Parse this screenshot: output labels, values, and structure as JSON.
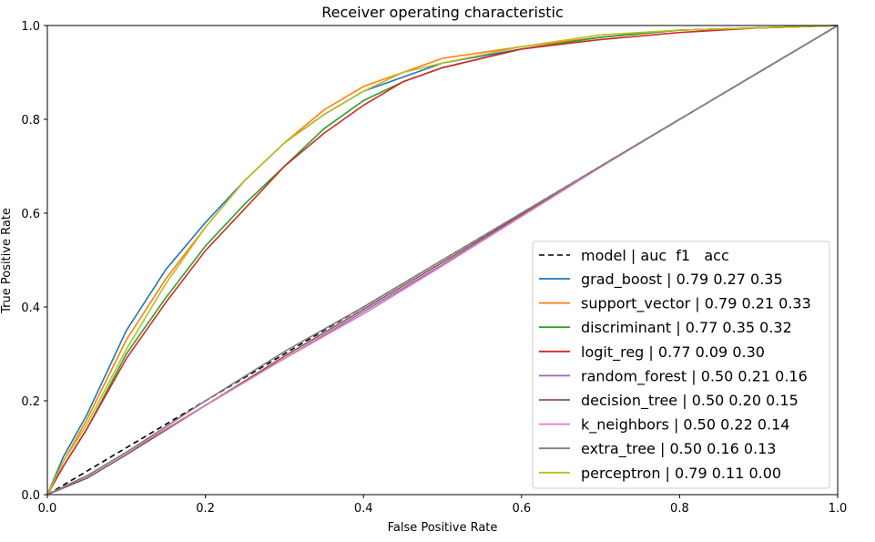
{
  "chart_data": {
    "type": "line",
    "title": "Receiver operating characteristic",
    "xlabel": "False Positive Rate",
    "ylabel": "True Positive Rate",
    "xlim": [
      0,
      1
    ],
    "ylim": [
      0,
      1
    ],
    "x_ticks": [
      "0.0",
      "0.2",
      "0.4",
      "0.6",
      "0.8",
      "1.0"
    ],
    "y_ticks": [
      "0.0",
      "0.2",
      "0.4",
      "0.6",
      "0.8",
      "1.0"
    ],
    "grid": false,
    "legend_position": "lower-right",
    "legend_header": "model | auc  f1   acc",
    "reference_line": {
      "x": [
        0,
        1
      ],
      "y": [
        0,
        1
      ],
      "color": "#000000",
      "style": "dashed"
    },
    "series": [
      {
        "name": "grad_boost | 0.79 0.27 0.35",
        "color": "#1f77b4",
        "x": [
          0,
          0.02,
          0.05,
          0.1,
          0.15,
          0.2,
          0.25,
          0.3,
          0.35,
          0.4,
          0.45,
          0.5,
          0.6,
          0.7,
          0.8,
          0.9,
          1.0
        ],
        "y": [
          0,
          0.08,
          0.17,
          0.35,
          0.48,
          0.58,
          0.67,
          0.75,
          0.81,
          0.86,
          0.89,
          0.92,
          0.95,
          0.975,
          0.99,
          0.995,
          1.0
        ]
      },
      {
        "name": "support_vector | 0.79 0.21 0.33",
        "color": "#ff7f0e",
        "x": [
          0,
          0.02,
          0.05,
          0.1,
          0.15,
          0.2,
          0.25,
          0.3,
          0.35,
          0.4,
          0.45,
          0.5,
          0.6,
          0.7,
          0.8,
          0.9,
          1.0
        ],
        "y": [
          0,
          0.07,
          0.16,
          0.33,
          0.46,
          0.57,
          0.67,
          0.75,
          0.82,
          0.87,
          0.9,
          0.93,
          0.955,
          0.975,
          0.99,
          0.995,
          1.0
        ]
      },
      {
        "name": "discriminant | 0.77 0.35 0.32",
        "color": "#2ca02c",
        "x": [
          0,
          0.02,
          0.05,
          0.1,
          0.15,
          0.2,
          0.25,
          0.3,
          0.35,
          0.4,
          0.45,
          0.5,
          0.6,
          0.7,
          0.8,
          0.9,
          1.0
        ],
        "y": [
          0,
          0.06,
          0.14,
          0.3,
          0.42,
          0.53,
          0.62,
          0.7,
          0.78,
          0.84,
          0.88,
          0.91,
          0.95,
          0.975,
          0.99,
          0.995,
          1.0
        ]
      },
      {
        "name": "logit_reg | 0.77 0.09 0.30",
        "color": "#d62728",
        "x": [
          0,
          0.02,
          0.05,
          0.1,
          0.15,
          0.2,
          0.25,
          0.3,
          0.35,
          0.4,
          0.45,
          0.5,
          0.6,
          0.7,
          0.8,
          0.9,
          1.0
        ],
        "y": [
          0,
          0.06,
          0.14,
          0.29,
          0.41,
          0.52,
          0.61,
          0.7,
          0.77,
          0.83,
          0.88,
          0.91,
          0.95,
          0.97,
          0.985,
          0.995,
          1.0
        ]
      },
      {
        "name": "random_forest | 0.50 0.21 0.16",
        "color": "#9467bd",
        "x": [
          0,
          0.05,
          0.1,
          0.2,
          0.3,
          0.4,
          0.5,
          0.6,
          0.7,
          0.8,
          0.9,
          1.0
        ],
        "y": [
          0,
          0.04,
          0.09,
          0.19,
          0.29,
          0.39,
          0.49,
          0.595,
          0.7,
          0.8,
          0.9,
          1.0
        ]
      },
      {
        "name": "decision_tree | 0.50 0.20 0.15",
        "color": "#8c564b",
        "x": [
          0,
          0.05,
          0.1,
          0.2,
          0.3,
          0.4,
          0.5,
          0.6,
          0.7,
          0.8,
          0.9,
          1.0
        ],
        "y": [
          0,
          0.035,
          0.085,
          0.19,
          0.295,
          0.395,
          0.495,
          0.597,
          0.7,
          0.8,
          0.9,
          1.0
        ]
      },
      {
        "name": "k_neighbors | 0.50 0.22 0.14",
        "color": "#e377c2",
        "x": [
          0,
          0.05,
          0.1,
          0.2,
          0.3,
          0.4,
          0.5,
          0.6,
          0.7,
          0.8,
          0.9,
          1.0
        ],
        "y": [
          0,
          0.04,
          0.09,
          0.19,
          0.29,
          0.385,
          0.488,
          0.593,
          0.698,
          0.8,
          0.9,
          1.0
        ]
      },
      {
        "name": "extra_tree | 0.50 0.16 0.13",
        "color": "#7f7f7f",
        "x": [
          0,
          0.05,
          0.1,
          0.2,
          0.3,
          0.4,
          0.5,
          0.6,
          0.7,
          0.8,
          0.9,
          1.0
        ],
        "y": [
          0,
          0.04,
          0.09,
          0.2,
          0.305,
          0.4,
          0.5,
          0.6,
          0.7,
          0.8,
          0.9,
          1.0
        ]
      },
      {
        "name": "perceptron | 0.79 0.11 0.00",
        "color": "#bcbd22",
        "x": [
          0,
          0.02,
          0.05,
          0.1,
          0.15,
          0.2,
          0.25,
          0.3,
          0.35,
          0.4,
          0.45,
          0.5,
          0.6,
          0.7,
          0.8,
          0.9,
          1.0
        ],
        "y": [
          0,
          0.07,
          0.15,
          0.31,
          0.45,
          0.57,
          0.67,
          0.75,
          0.81,
          0.86,
          0.9,
          0.92,
          0.955,
          0.98,
          0.99,
          0.995,
          1.0
        ]
      }
    ]
  }
}
